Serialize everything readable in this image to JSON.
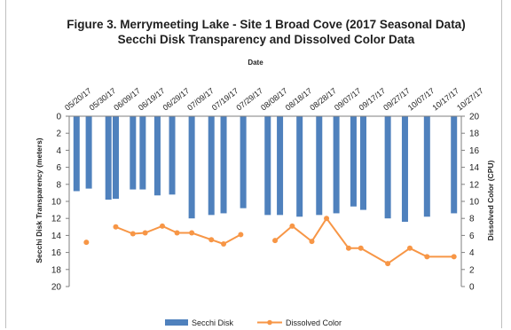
{
  "chart_data": {
    "type": "bar",
    "title": "Figure 3. Merrymeeting Lake - Site 1 Broad Cove (2017 Seasonal Data)",
    "subtitle": "Secchi Disk Transparency and Dissolved Color Data",
    "xlabel": "Date",
    "ylabel_left": "Secchi Disk Transparency (meters)",
    "ylabel_right": "Dissolved Color (CPU)",
    "ylim_left": [
      0,
      20
    ],
    "ylim_right": [
      0,
      20
    ],
    "left_axis_inverted": true,
    "left_ticks": [
      0,
      2,
      4,
      6,
      8,
      10,
      12,
      14,
      16,
      18,
      20
    ],
    "right_ticks": [
      0,
      2,
      4,
      6,
      8,
      10,
      12,
      14,
      16,
      18,
      20
    ],
    "date_labels": [
      "05/20/17",
      "05/30/17",
      "06/09/17",
      "06/19/17",
      "06/29/17",
      "07/09/17",
      "07/19/17",
      "07/29/17",
      "08/08/17",
      "08/18/17",
      "08/28/17",
      "09/07/17",
      "09/17/17",
      "09/27/17",
      "10/07/17",
      "10/17/17",
      "10/27/17"
    ],
    "date_range": [
      "2017-05-20",
      "2017-10-27"
    ],
    "grid": false,
    "legend_position": "bottom",
    "series": [
      {
        "name": "Secchi Disk",
        "type": "bar",
        "axis": "left",
        "color": "#4f81bd",
        "points": [
          {
            "date": "2017-05-23",
            "value": 8.8
          },
          {
            "date": "2017-05-28",
            "value": 8.5
          },
          {
            "date": "2017-06-05",
            "value": 9.8
          },
          {
            "date": "2017-06-08",
            "value": 9.7
          },
          {
            "date": "2017-06-15",
            "value": 8.6
          },
          {
            "date": "2017-06-19",
            "value": 8.6
          },
          {
            "date": "2017-06-25",
            "value": 9.3
          },
          {
            "date": "2017-07-01",
            "value": 9.2
          },
          {
            "date": "2017-07-09",
            "value": 12.0
          },
          {
            "date": "2017-07-17",
            "value": 11.6
          },
          {
            "date": "2017-07-22",
            "value": 11.4
          },
          {
            "date": "2017-07-30",
            "value": 10.8
          },
          {
            "date": "2017-08-09",
            "value": 11.6
          },
          {
            "date": "2017-08-14",
            "value": 11.6
          },
          {
            "date": "2017-08-22",
            "value": 11.8
          },
          {
            "date": "2017-08-30",
            "value": 11.6
          },
          {
            "date": "2017-09-06",
            "value": 11.4
          },
          {
            "date": "2017-09-13",
            "value": 10.6
          },
          {
            "date": "2017-09-17",
            "value": 11.0
          },
          {
            "date": "2017-09-27",
            "value": 12.0
          },
          {
            "date": "2017-10-04",
            "value": 12.4
          },
          {
            "date": "2017-10-13",
            "value": 11.8
          },
          {
            "date": "2017-10-24",
            "value": 11.4
          }
        ]
      },
      {
        "name": "Dissolved Color",
        "type": "line",
        "axis": "right",
        "color": "#f79646",
        "segments": [
          [
            {
              "date": "2017-05-27",
              "value": 5.2
            }
          ],
          [
            {
              "date": "2017-06-08",
              "value": 7.0
            },
            {
              "date": "2017-06-15",
              "value": 6.2
            },
            {
              "date": "2017-06-20",
              "value": 6.3
            },
            {
              "date": "2017-06-27",
              "value": 7.1
            },
            {
              "date": "2017-07-03",
              "value": 6.3
            },
            {
              "date": "2017-07-09",
              "value": 6.3
            },
            {
              "date": "2017-07-17",
              "value": 5.5
            },
            {
              "date": "2017-07-22",
              "value": 5.0
            },
            {
              "date": "2017-07-29",
              "value": 6.1
            }
          ],
          [
            {
              "date": "2017-08-12",
              "value": 5.4
            },
            {
              "date": "2017-08-19",
              "value": 7.1
            },
            {
              "date": "2017-08-27",
              "value": 5.3
            },
            {
              "date": "2017-09-02",
              "value": 8.0
            },
            {
              "date": "2017-09-11",
              "value": 4.5
            },
            {
              "date": "2017-09-16",
              "value": 4.5
            },
            {
              "date": "2017-09-27",
              "value": 2.7
            },
            {
              "date": "2017-10-06",
              "value": 4.5
            },
            {
              "date": "2017-10-13",
              "value": 3.5
            },
            {
              "date": "2017-10-24",
              "value": 3.5
            }
          ]
        ]
      }
    ]
  }
}
